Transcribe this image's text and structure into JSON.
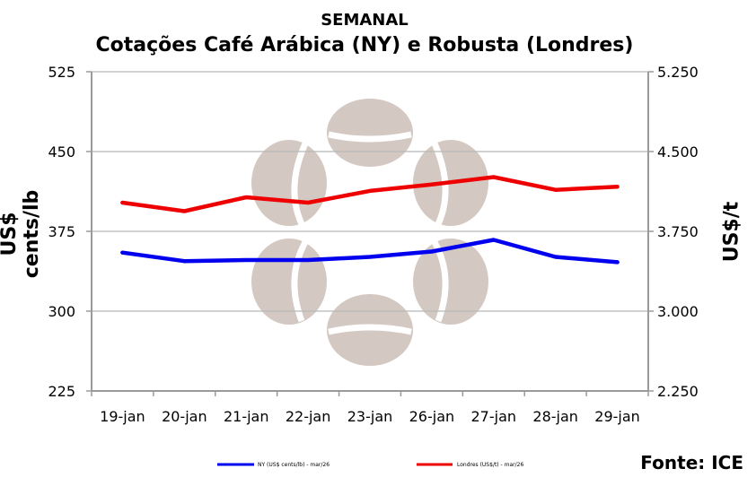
{
  "chart_data": {
    "type": "line",
    "title_small": "SEMANAL",
    "title": "Cotações Café Arábica (NY) e Robusta (Londres)",
    "ylabel_left": "US$ cents/lb",
    "ylabel_right": "US$/t",
    "categories": [
      "19-jan",
      "20-jan",
      "21-jan",
      "22-jan",
      "23-jan",
      "26-jan",
      "27-jan",
      "28-jan",
      "29-jan"
    ],
    "left_ticks": [
      "525",
      "450",
      "375",
      "300",
      "225"
    ],
    "right_ticks": [
      "5.250",
      "4.500",
      "3.750",
      "3.000",
      "2.250"
    ],
    "ylim_left": [
      225,
      525
    ],
    "ylim_right": [
      2250,
      5250
    ],
    "series": [
      {
        "name": "NY (US$ cents/lb) - mar/26",
        "axis": "left",
        "color": "#0000ee",
        "values": [
          355,
          347,
          348,
          348,
          351,
          356,
          367,
          351,
          346
        ]
      },
      {
        "name": "Londres (US$/t) - mar/26",
        "axis": "right",
        "color": "#ee0000",
        "values": [
          4020,
          3940,
          4070,
          4020,
          4130,
          4190,
          4260,
          4140,
          4170
        ]
      }
    ],
    "source": "Fonte: ICE"
  }
}
